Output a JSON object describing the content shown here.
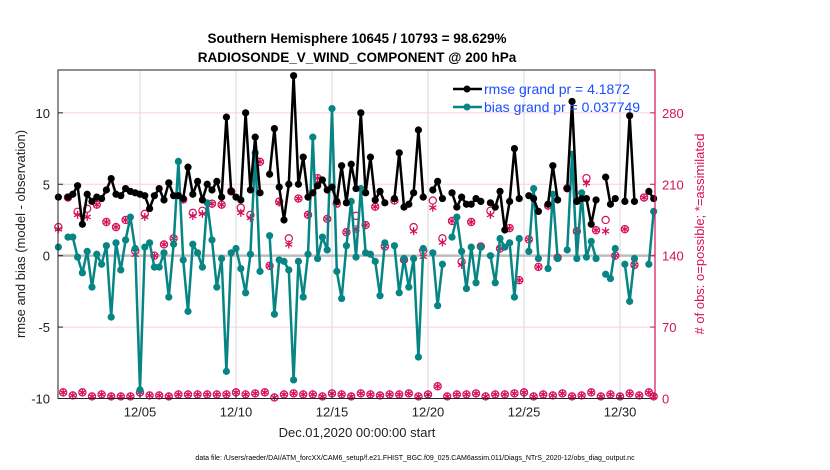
{
  "chart_data": {
    "type": "line",
    "title_line1": "Southern Hemisphere 10645 / 10793 = 98.629%",
    "title_line2": "RADIOSONDE_V_WIND_COMPONENT @ 200 hPa",
    "xlabel": "Dec.01,2020 00:00:00 start",
    "ylabel": "rmse and bias (model - observation)",
    "ylabel_right": "# of obs: o=possible; *=assimilated",
    "ylim": [
      -10,
      13
    ],
    "ylim_right": [
      0,
      322
    ],
    "xlim": [
      0.73,
      31.82
    ],
    "xticks": [
      5,
      10,
      15,
      20,
      25,
      30
    ],
    "xtick_labels": [
      "12/05",
      "12/10",
      "12/15",
      "12/20",
      "12/25",
      "12/30"
    ],
    "yticks": [
      -10,
      -5,
      0,
      5,
      10
    ],
    "ytick_labels": [
      "-10",
      "-5",
      "0",
      "5",
      "10"
    ],
    "yticks_right": [
      0,
      70,
      140,
      210,
      280
    ],
    "ytick_labels_right": [
      "0",
      "70",
      "140",
      "210",
      "280"
    ],
    "grid": true,
    "legend_placement": "top-right",
    "colors": {
      "rmse": "#000000",
      "bias": "#078585",
      "obs": "#d6105a",
      "legend_text": "#1a4dff"
    },
    "x": [
      0.75,
      1,
      1.25,
      1.5,
      1.75,
      2,
      2.25,
      2.5,
      2.75,
      3,
      3.25,
      3.5,
      3.75,
      4,
      4.25,
      4.5,
      4.75,
      5,
      5.25,
      5.5,
      5.75,
      6,
      6.25,
      6.5,
      6.75,
      7,
      7.25,
      7.5,
      7.75,
      8,
      8.25,
      8.5,
      8.75,
      9,
      9.25,
      9.5,
      9.75,
      10,
      10.25,
      10.5,
      10.75,
      11,
      11.25,
      11.5,
      11.75,
      12,
      12.25,
      12.5,
      12.75,
      13,
      13.25,
      13.5,
      13.75,
      14,
      14.25,
      14.5,
      14.75,
      15,
      15.25,
      15.5,
      15.75,
      16,
      16.25,
      16.5,
      16.75,
      17,
      17.25,
      17.5,
      17.75,
      18,
      18.25,
      18.5,
      18.75,
      19,
      19.25,
      19.5,
      19.75,
      20,
      20.25,
      20.5,
      20.75,
      21,
      21.25,
      21.5,
      21.75,
      22,
      22.25,
      22.5,
      22.75,
      23,
      23.25,
      23.5,
      23.75,
      24,
      24.25,
      24.5,
      24.75,
      25,
      25.25,
      25.5,
      25.75,
      26,
      26.25,
      26.5,
      26.75,
      27,
      27.25,
      27.5,
      27.75,
      28,
      28.25,
      28.5,
      28.75,
      29,
      29.25,
      29.5,
      29.75,
      30,
      30.25,
      30.5,
      30.75,
      31,
      31.25,
      31.5,
      31.75
    ],
    "series": [
      {
        "name": "rmse grand pr = 4.1872",
        "axis": "left",
        "values": [
          4.1,
          null,
          4.1,
          4.3,
          4.9,
          2.2,
          4.3,
          3.8,
          4.1,
          4.0,
          4.6,
          5.4,
          4.3,
          4.2,
          4.7,
          4.5,
          4.4,
          4.3,
          4.2,
          3.3,
          4.2,
          4.7,
          3.9,
          5.1,
          4.2,
          4.2,
          4.0,
          6.2,
          4.3,
          5.2,
          3.9,
          5.0,
          4.6,
          5.2,
          4.1,
          9.7,
          4.5,
          4.1,
          3.9,
          10.0,
          4.6,
          8.3,
          4.4,
          null,
          5.7,
          8.9,
          4.8,
          2.5,
          5.0,
          12.6,
          5.0,
          6.9,
          4.1,
          4.4,
          4.9,
          5.3,
          4.6,
          4.8,
          3.8,
          6.3,
          3.7,
          6.4,
          4.7,
          10.0,
          4.4,
          6.9,
          3.9,
          4.5,
          3.7,
          null,
          4.0,
          7.2,
          3.4,
          3.6,
          4.4,
          8.8,
          4.1,
          null,
          4.6,
          5.2,
          4.0,
          null,
          4.4,
          3.4,
          4.1,
          3.6,
          3.6,
          4.0,
          3.8,
          null,
          3.7,
          3.4,
          4.5,
          1.8,
          3.8,
          7.5,
          4.0,
          null,
          4.2,
          4.0,
          3.1,
          null,
          3.6,
          6.3,
          3.9,
          null,
          4.7,
          10.8,
          3.8,
          4.0,
          4.0,
          2.2,
          3.9,
          null,
          5.5,
          3.6,
          4.0,
          null,
          3.8,
          9.8,
          3.8,
          null,
          null,
          4.5,
          4.0
        ]
      },
      {
        "name": "bias grand pr = 0.037749",
        "axis": "left",
        "values": [
          0.6,
          null,
          1.3,
          1.3,
          -0.1,
          -1.2,
          0.3,
          -2.2,
          0.1,
          -0.6,
          0.7,
          -4.3,
          0.9,
          -1.0,
          1.1,
          2.7,
          0.5,
          -9.4,
          0.6,
          0.9,
          -0.8,
          -0.8,
          0.2,
          -2.9,
          0.8,
          6.6,
          -0.3,
          -3.9,
          0.8,
          0.2,
          -0.8,
          3.7,
          1.1,
          -2.2,
          -0.2,
          -8.1,
          0.2,
          0.5,
          -0.9,
          -2.6,
          0.1,
          7.2,
          -1.1,
          null,
          1.4,
          -4.1,
          -0.3,
          -0.4,
          -1.0,
          -8.7,
          -0.4,
          -2.9,
          0.1,
          8.3,
          -0.2,
          1.3,
          0.4,
          10.3,
          -1.1,
          -3.0,
          0.7,
          3.8,
          -0.1,
          4.7,
          0.2,
          0.1,
          -0.4,
          -2.8,
          0.9,
          null,
          0.7,
          -2.6,
          -0.2,
          -2.2,
          -0.2,
          -7.1,
          0.5,
          null,
          0.2,
          -3.5,
          -0.6,
          null,
          1.3,
          2.7,
          0.3,
          -2.3,
          0.6,
          -1.9,
          0.6,
          null,
          0.0,
          -1.9,
          1.2,
          0.6,
          0.9,
          -2.9,
          1.2,
          null,
          0.3,
          4.7,
          -0.2,
          null,
          -0.9,
          4.3,
          -0.2,
          null,
          0.4,
          7.1,
          -0.2,
          4.4,
          -0.1,
          1.0,
          -0.2,
          null,
          -1.3,
          -1.6,
          0.5,
          null,
          -0.6,
          -3.2,
          -0.2,
          null,
          null,
          -0.6,
          3.1
        ]
      },
      {
        "name": "possible",
        "axis": "right",
        "marker": "o",
        "values": [
          168,
          6,
          197,
          3,
          183,
          6,
          186,
          2,
          190,
          4,
          173,
          2,
          168,
          2,
          175,
          2,
          145,
          6,
          181,
          3,
          140,
          3,
          151,
          2,
          157,
          4,
          195,
          4,
          182,
          4,
          184,
          4,
          191,
          4,
          190,
          4,
          203,
          6,
          187,
          4,
          180,
          5,
          232,
          6,
          130,
          1,
          193,
          4,
          157,
          5,
          196,
          4,
          180,
          4,
          216,
          2,
          176,
          5,
          191,
          4,
          163,
          2,
          179,
          5,
          170,
          4,
          188,
          3,
          149,
          4,
          194,
          4,
          136,
          5,
          168,
          2,
          145,
          4,
          194,
          12,
          157,
          2,
          174,
          4,
          134,
          4,
          173,
          5,
          149,
          2,
          184,
          4,
          147,
          4,
          167,
          5,
          116,
          6,
          156,
          2,
          129,
          4,
          189,
          3,
          138,
          5,
          206,
          2,
          164,
          3,
          216,
          6,
          165,
          2,
          175,
          4,
          140,
          2,
          166,
          5,
          131,
          3,
          197,
          6,
          2
        ]
      },
      {
        "name": "assimilated",
        "axis": "right",
        "marker": "*",
        "values": [
          166,
          6,
          197,
          3,
          180,
          6,
          178,
          2,
          190,
          4,
          173,
          2,
          168,
          2,
          175,
          2,
          141,
          6,
          178,
          3,
          140,
          3,
          151,
          2,
          157,
          4,
          195,
          4,
          179,
          4,
          181,
          4,
          191,
          4,
          190,
          4,
          203,
          6,
          182,
          4,
          177,
          5,
          232,
          6,
          130,
          1,
          192,
          4,
          151,
          5,
          196,
          4,
          180,
          4,
          216,
          2,
          176,
          5,
          191,
          4,
          163,
          2,
          166,
          5,
          170,
          4,
          188,
          3,
          149,
          4,
          194,
          4,
          136,
          5,
          164,
          2,
          139,
          4,
          187,
          12,
          153,
          2,
          174,
          4,
          131,
          4,
          173,
          5,
          149,
          2,
          180,
          4,
          147,
          4,
          167,
          5,
          116,
          6,
          156,
          2,
          129,
          4,
          189,
          3,
          138,
          5,
          206,
          2,
          164,
          3,
          211,
          6,
          165,
          2,
          164,
          4,
          140,
          2,
          166,
          5,
          131,
          3,
          197,
          6,
          2
        ]
      }
    ],
    "legend": [
      "rmse grand pr = 4.1872",
      "bias grand pr = 0.037749"
    ]
  },
  "footer": "data file: /Users/raeder/DAI/ATM_forcXX/CAM6_setup/f.e21.FHIST_BGC.f09_025.CAM6assim.011/Diags_NTrS_2020-12/obs_diag_output.nc"
}
